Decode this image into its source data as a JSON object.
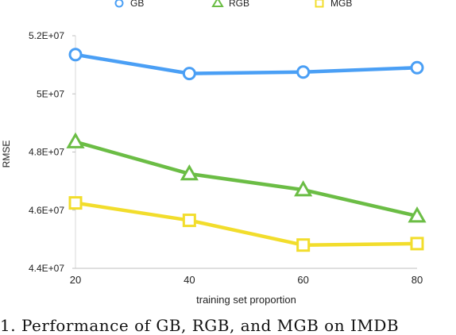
{
  "chart_data": {
    "type": "line",
    "xlabel": "training set proportion",
    "ylabel": "RMSE",
    "x": [
      20,
      40,
      60,
      80
    ],
    "xlim": [
      20,
      80
    ],
    "ylim": [
      44000000,
      52000000
    ],
    "y_ticks": [
      {
        "value": 44000000,
        "label": "4.4E+07"
      },
      {
        "value": 46000000,
        "label": "4.6E+07"
      },
      {
        "value": 48000000,
        "label": "4.8E+07"
      },
      {
        "value": 50000000,
        "label": "5E+07"
      },
      {
        "value": 52000000,
        "label": "5.2E+07"
      }
    ],
    "x_ticks": [
      {
        "value": 20,
        "label": "20"
      },
      {
        "value": 40,
        "label": "40"
      },
      {
        "value": 60,
        "label": "60"
      },
      {
        "value": 80,
        "label": "80"
      }
    ],
    "grid": false,
    "legend_position": "top",
    "series": [
      {
        "name": "GB",
        "color": "#4a9ff5",
        "marker": "circle",
        "values": [
          51350000,
          50700000,
          50750000,
          50900000
        ]
      },
      {
        "name": "RGB",
        "color": "#6bbd45",
        "marker": "triangle",
        "values": [
          48350000,
          47250000,
          46700000,
          45800000
        ]
      },
      {
        "name": "MGB",
        "color": "#f2dd2c",
        "marker": "square",
        "values": [
          46250000,
          45650000,
          44800000,
          44850000
        ]
      }
    ]
  },
  "caption": "1. Performance of GB, RGB, and MGB on IMDB"
}
